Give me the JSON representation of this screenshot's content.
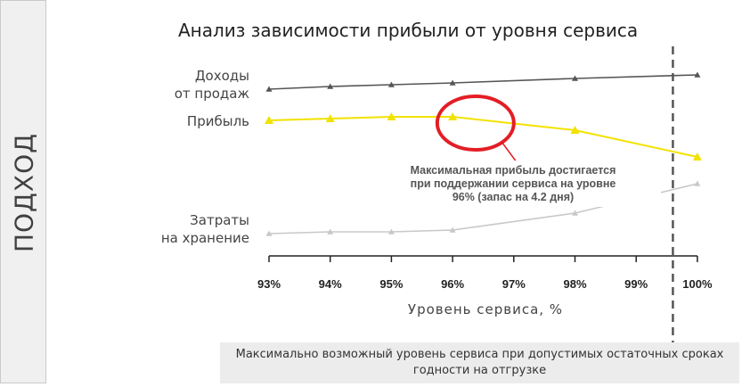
{
  "side_label": "ПОДХОД",
  "chart_data": {
    "type": "line",
    "title": "Анализ зависимости прибыли от уровня сервиса",
    "xlabel": "Уровень сервиса, %",
    "ylabel": "",
    "categories": [
      "93%",
      "94%",
      "95%",
      "96%",
      "97%",
      "98%",
      "99%",
      "100%"
    ],
    "x": [
      93,
      94,
      95,
      96,
      97,
      98,
      99,
      100
    ],
    "series": [
      {
        "name": "Доходы от продаж",
        "name_lines": [
          "Доходы",
          "от продаж"
        ],
        "color": "#555555",
        "x": [
          93,
          94,
          95,
          96,
          98,
          100
        ],
        "values": [
          100,
          97,
          95,
          93,
          88,
          84
        ]
      },
      {
        "name": "Прибыль",
        "name_lines": [
          "Прибыль"
        ],
        "color": "#f2e200",
        "x": [
          93,
          94,
          95,
          96,
          98,
          100
        ],
        "values": [
          135,
          133,
          131,
          131,
          146,
          176
        ]
      },
      {
        "name": "Затраты на хранение",
        "name_lines": [
          "Затраты",
          "на хранение"
        ],
        "color": "#c8c8c8",
        "x": [
          93,
          94,
          95,
          96,
          98,
          100
        ],
        "values": [
          262,
          260,
          260,
          258,
          239,
          206
        ]
      }
    ],
    "note": "values are relative vertical positions (axis unlabeled; higher value = lower on chart)",
    "annotation": {
      "lines": [
        "Максимальная прибыль достигается",
        "при поддержании сервиса на уровне",
        "96% (запас на 4.2 дня)"
      ],
      "highlight_x": 96.2
    },
    "reference_line_x": 99.6,
    "grid": false
  },
  "footnote": "Максимально возможный уровень сервиса при допустимых остаточных сроках годности на отгрузке",
  "colors": {
    "annotation_circle": "#e31e24",
    "reference_line": "#555555"
  }
}
